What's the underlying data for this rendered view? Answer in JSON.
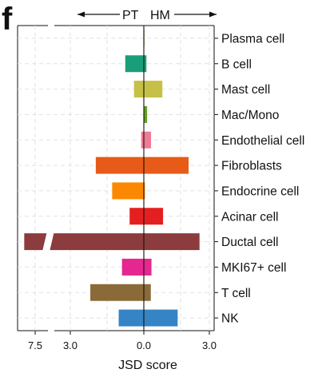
{
  "panel_label": "f",
  "direction": {
    "left": "PT",
    "right": "HM"
  },
  "chart_data": {
    "type": "bar",
    "orientation": "horizontal",
    "xlabel": "JSD score",
    "x_axis_break": true,
    "x_ticks": [
      "7.5",
      "3.0",
      "0.0",
      "3.0"
    ],
    "grid": true,
    "categories": [
      "Plasma cell",
      "B cell",
      "Mast cell",
      "Mac/Mono",
      "Endothelial cell",
      "Fibroblasts",
      "Endocrine cell",
      "Acinar cell",
      "Ductal cell",
      "MKI67+ cell",
      "T cell",
      "NK"
    ],
    "bars": [
      {
        "category": "Plasma cell",
        "pt": 0.02,
        "hm": 0.03,
        "color": "#b5cd85"
      },
      {
        "category": "B cell",
        "pt": 0.85,
        "hm": 0.12,
        "color": "#1a9e79"
      },
      {
        "category": "Mast cell",
        "pt": 0.45,
        "hm": 0.85,
        "color": "#c7c046"
      },
      {
        "category": "Mac/Mono",
        "pt": 0.0,
        "hm": 0.15,
        "color": "#60a01e"
      },
      {
        "category": "Endothelial cell",
        "pt": 0.12,
        "hm": 0.33,
        "color": "#f07b95"
      },
      {
        "category": "Fibroblasts",
        "pt": 2.2,
        "hm": 2.05,
        "color": "#e85a17"
      },
      {
        "category": "Endocrine cell",
        "pt": 1.45,
        "hm": 0.05,
        "color": "#fb8800"
      },
      {
        "category": "Acinar cell",
        "pt": 0.65,
        "hm": 0.88,
        "color": "#e3201f"
      },
      {
        "category": "Ductal cell",
        "pt": 8.0,
        "hm": 2.55,
        "color": "#8c3c3d"
      },
      {
        "category": "MKI67+ cell",
        "pt": 1.0,
        "hm": 0.35,
        "color": "#e5278f"
      },
      {
        "category": "T cell",
        "pt": 2.45,
        "hm": 0.32,
        "color": "#8b6a3a"
      },
      {
        "category": "NK",
        "pt": 1.15,
        "hm": 1.55,
        "color": "#3584c5"
      }
    ]
  }
}
